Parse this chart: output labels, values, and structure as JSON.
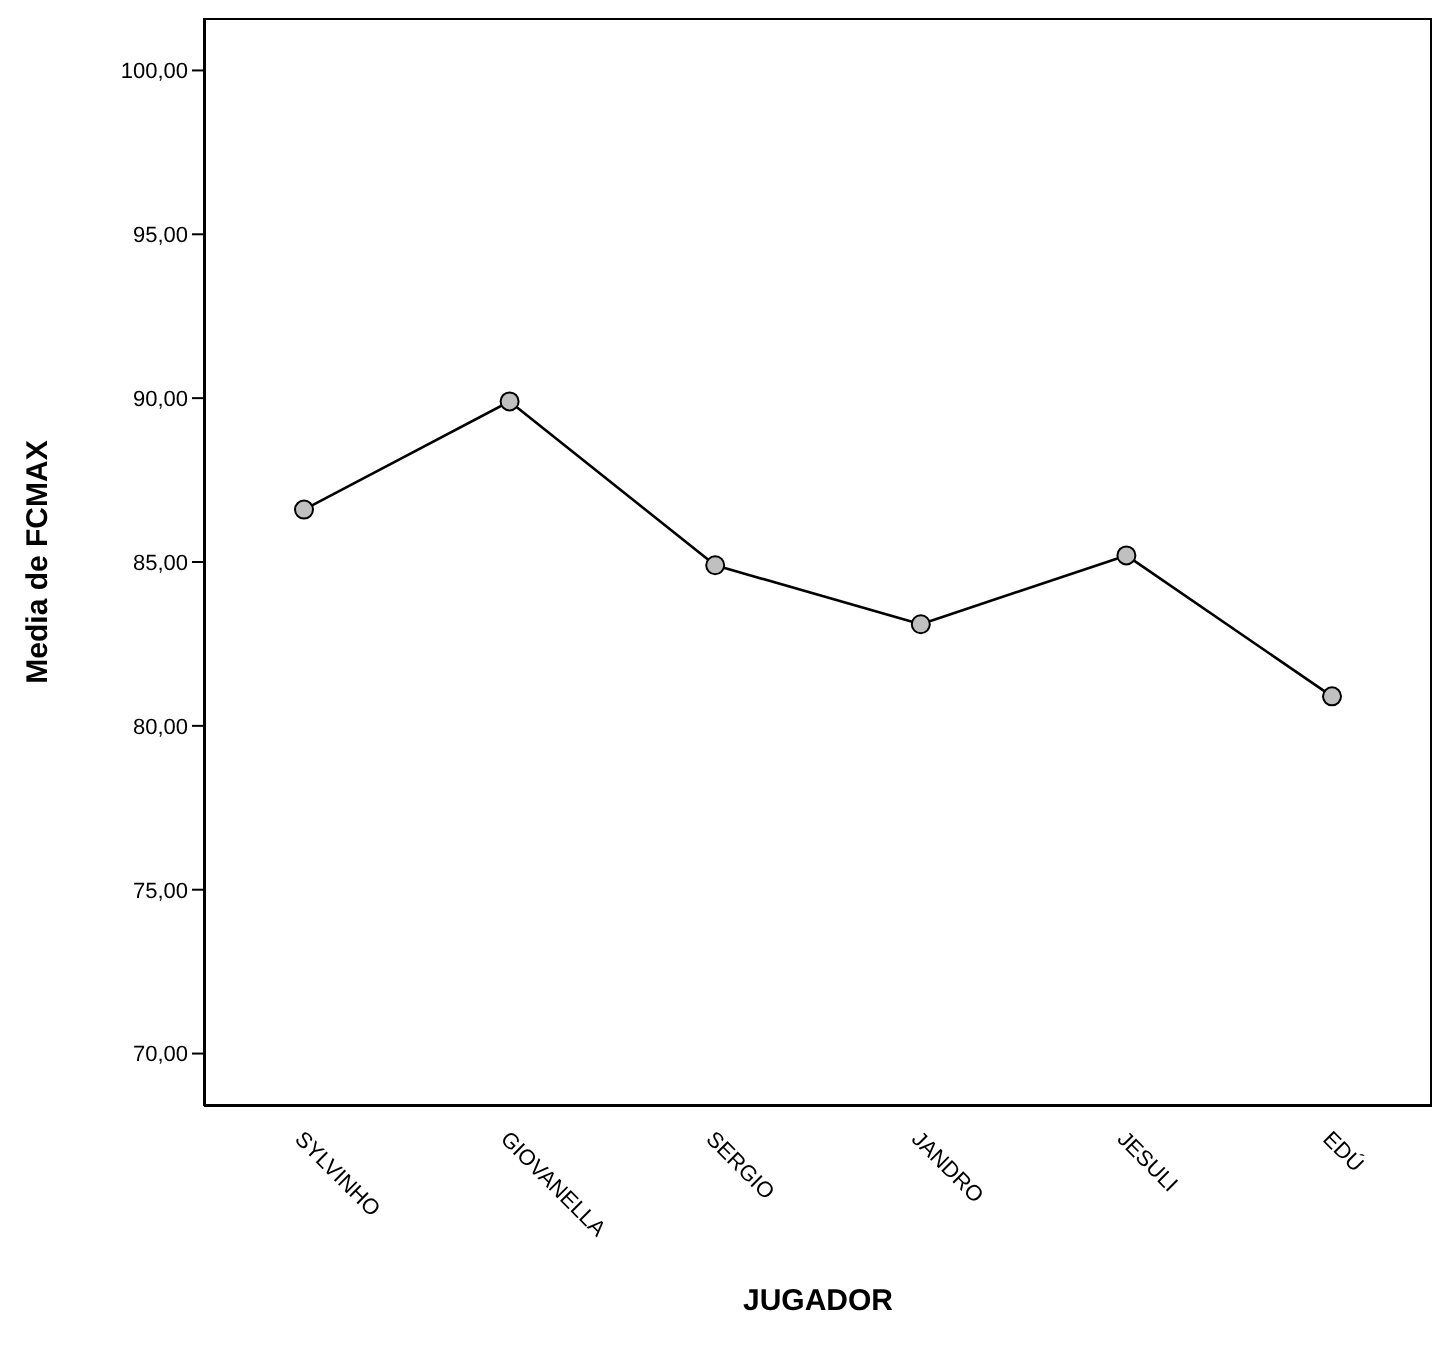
{
  "chart_data": {
    "type": "line",
    "xlabel": "JUGADOR",
    "ylabel": "Media de FCMAX",
    "categories": [
      "SYLVINHO",
      "GIOVANELLA",
      "SERGIO",
      "JANDRO",
      "JESULI",
      "EDÚ"
    ],
    "series": [
      {
        "color": "#000000",
        "values": [
          86.6,
          89.9,
          84.9,
          83.1,
          85.2,
          80.9
        ]
      }
    ],
    "ylim": [
      68.4,
      101.6
    ],
    "yticks": [
      {
        "value": 70,
        "label": "70,00"
      },
      {
        "value": 75,
        "label": "75,00"
      },
      {
        "value": 80,
        "label": "80,00"
      },
      {
        "value": 85,
        "label": "85,00"
      },
      {
        "value": 90,
        "label": "90,00"
      },
      {
        "value": 95,
        "label": "95,00"
      },
      {
        "value": 100,
        "label": "100,00"
      }
    ],
    "grid": false,
    "marker": "circle",
    "line_style": "solid"
  }
}
